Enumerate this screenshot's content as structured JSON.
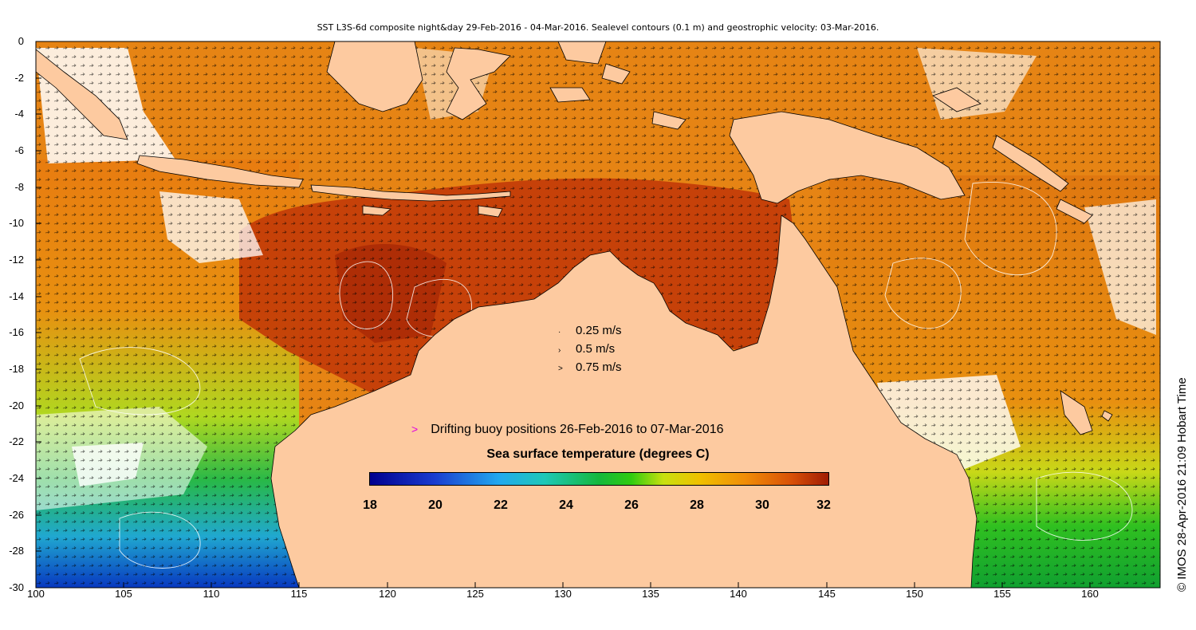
{
  "title": "SST L3S-6d composite night&day 29-Feb-2016 - 04-Mar-2016. Sealevel contours (0.1 m) and geostrophic velocity: 03-Mar-2016.",
  "axes": {
    "y_ticks": [
      "0",
      "-2",
      "-4",
      "-6",
      "-8",
      "-10",
      "-12",
      "-14",
      "-16",
      "-18",
      "-20",
      "-22",
      "-24",
      "-26",
      "-28",
      "-30"
    ],
    "x_ticks": [
      "100",
      "105",
      "110",
      "115",
      "120",
      "125",
      "130",
      "135",
      "140",
      "145",
      "150",
      "155",
      "160"
    ],
    "lon_range": [
      100,
      164.5
    ],
    "lat_range": [
      -30,
      0
    ]
  },
  "velocity_legend": [
    {
      "label": "0.25 m/s",
      "glyph": "·"
    },
    {
      "label": "0.5 m/s",
      "glyph": "›"
    },
    {
      "label": "0.75 m/s",
      "glyph": ">"
    }
  ],
  "buoy_legend": {
    "marker": ">",
    "label": "Drifting buoy positions 26-Feb-2016 to 07-Mar-2016",
    "color": "#e000e0"
  },
  "colorbar": {
    "title": "Sea surface temperature (degrees C)",
    "ticks": [
      "18",
      "20",
      "22",
      "24",
      "26",
      "28",
      "30",
      "32"
    ],
    "range": [
      18,
      32
    ]
  },
  "credit": "© IMOS 28-Apr-2016 21:09 Hobart Time",
  "colors": {
    "land": "#fdcaa0",
    "sea_warm": "#c83c08",
    "sea_orange": "#e87c10",
    "cloud": "#ffffff"
  }
}
